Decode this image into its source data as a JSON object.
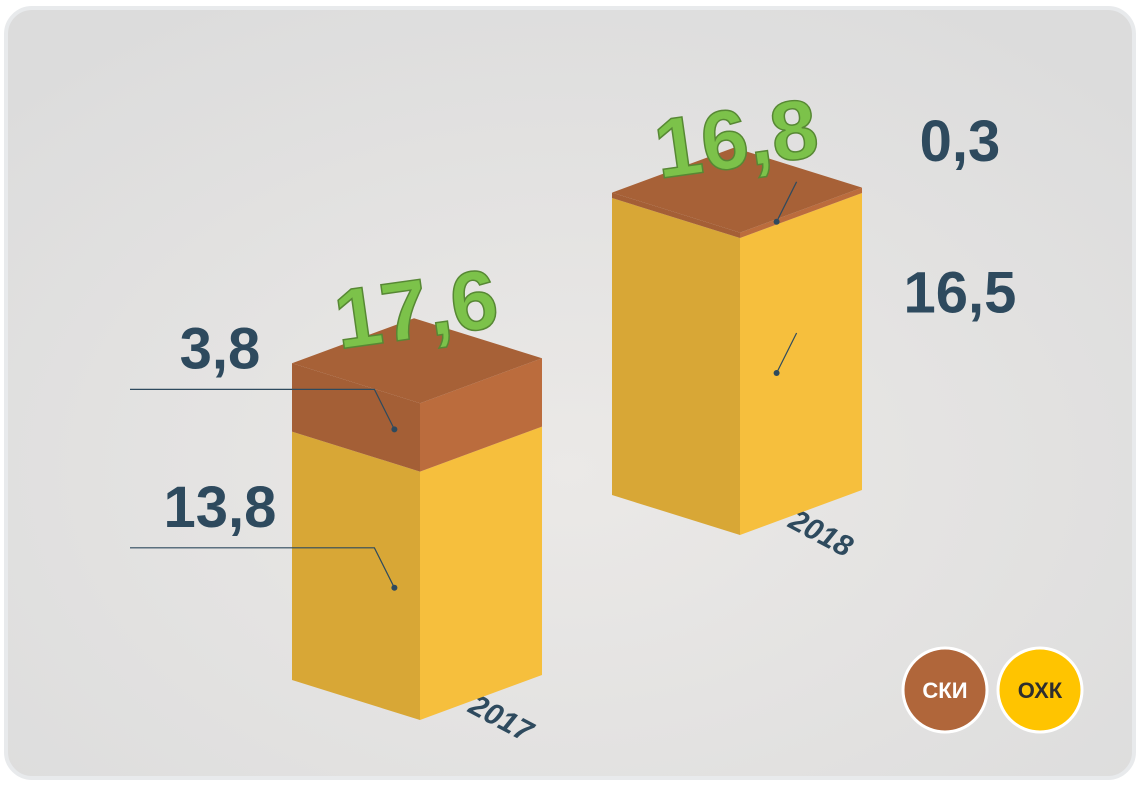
{
  "chart_data": {
    "type": "bar",
    "stacked": true,
    "categories": [
      "2017",
      "2018"
    ],
    "series": [
      {
        "name": "ОХК",
        "color": "#e8b43a",
        "values": [
          13.8,
          16.5
        ],
        "value_labels": [
          "13,8",
          "16,5"
        ]
      },
      {
        "name": "СКИ",
        "color": "#b0663a",
        "values": [
          3.8,
          0.3
        ],
        "value_labels": [
          "3,8",
          "0,3"
        ]
      }
    ],
    "totals": [
      17.6,
      16.8
    ],
    "total_labels": [
      "17,6",
      "16,8"
    ],
    "total_color": "#7cc24a"
  }
}
